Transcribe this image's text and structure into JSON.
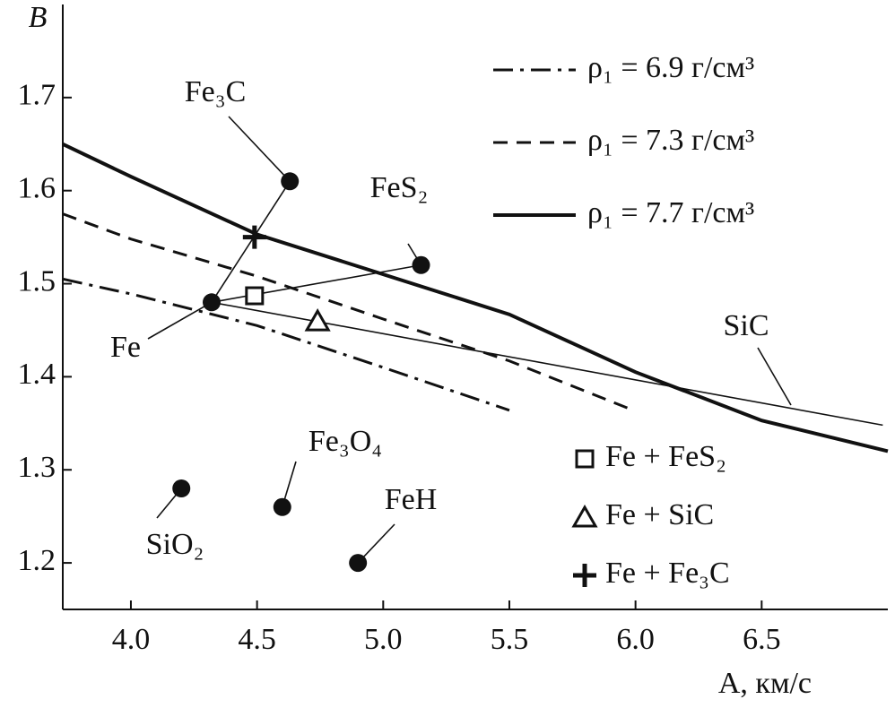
{
  "chart_data": {
    "type": "scatter",
    "y_label": "B",
    "x_label": "A, км/с",
    "xlim": [
      3.73,
      7.0
    ],
    "ylim": [
      1.15,
      1.8
    ],
    "xticks": [
      {
        "value": 4,
        "label": "4.0"
      },
      4.5,
      {
        "value": 5,
        "label": "5.0"
      },
      5.5,
      {
        "value": 6,
        "label": "6.0"
      },
      6.5
    ],
    "yticks": [
      1.2,
      1.3,
      1.4,
      1.5,
      1.6,
      1.7
    ],
    "series": [
      {
        "name": "ρ₁ = 6.9 г/см³",
        "color": "#111111",
        "dash": "dash-dot",
        "width": 3,
        "x": [
          3.73,
          4.0,
          4.5,
          5.0,
          5.5
        ],
        "values": [
          1.505,
          1.489,
          1.455,
          1.41,
          1.364
        ]
      },
      {
        "name": "ρ₁ = 7.3 г/см³",
        "color": "#111111",
        "dash": "dash",
        "width": 3,
        "x": [
          3.73,
          4.0,
          4.5,
          5.0,
          5.5,
          6.0
        ],
        "values": [
          1.575,
          1.548,
          1.508,
          1.462,
          1.417,
          1.363
        ]
      },
      {
        "name": "ρ₁ = 7.7 г/см³",
        "color": "#111111",
        "dash": "solid",
        "width": 4,
        "x": [
          3.73,
          4.0,
          4.5,
          5.0,
          5.5,
          6.0,
          6.5,
          7.0
        ],
        "values": [
          1.65,
          1.615,
          1.553,
          1.51,
          1.467,
          1.405,
          1.353,
          1.32
        ]
      }
    ],
    "points": {
      "names": [
        "Fe₃C",
        "FeS₂",
        "Fe",
        "SiO₂",
        "Fe₃O₄",
        "FeH"
      ],
      "x": [
        4.63,
        5.15,
        4.32,
        4.2,
        4.6,
        4.9
      ],
      "values": [
        1.61,
        1.52,
        1.48,
        1.28,
        1.26,
        1.2
      ]
    },
    "mixing_lines": [
      {
        "x": [
          4.32,
          4.63
        ],
        "values": [
          1.48,
          1.61
        ]
      },
      {
        "x": [
          4.32,
          5.15
        ],
        "values": [
          1.48,
          1.52
        ]
      },
      {
        "x": [
          4.32,
          6.98
        ],
        "values": [
          1.48,
          1.348
        ],
        "label": "SiC"
      }
    ],
    "mixtures": {
      "names": [
        "Fe + FeS₂",
        "Fe + SiC",
        "Fe + Fe₃C"
      ],
      "markers": [
        "square",
        "triangle",
        "plus"
      ],
      "x": [
        4.49,
        4.74,
        4.49
      ],
      "values": [
        1.487,
        1.46,
        1.55
      ]
    }
  }
}
